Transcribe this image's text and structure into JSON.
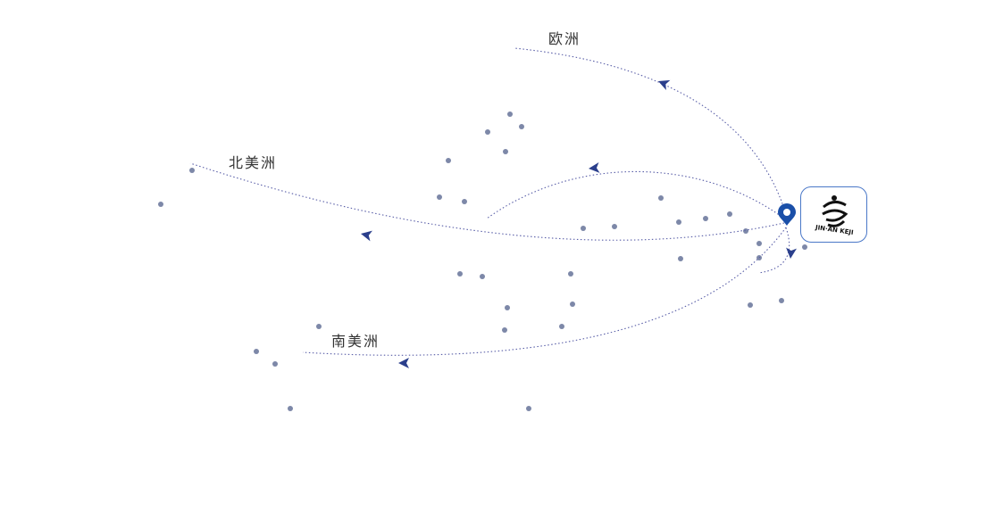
{
  "regions": {
    "europe": "欧洲",
    "north_america": "北美洲",
    "south_america": "南美洲"
  },
  "logo": {
    "text": "JIN AN KEJI"
  },
  "colors": {
    "route": "#5a5fa8",
    "arrow": "#2b3f8c",
    "dot": "#7d88a8",
    "pin": "#1a4fa8",
    "logo_border": "#4a78c8"
  }
}
